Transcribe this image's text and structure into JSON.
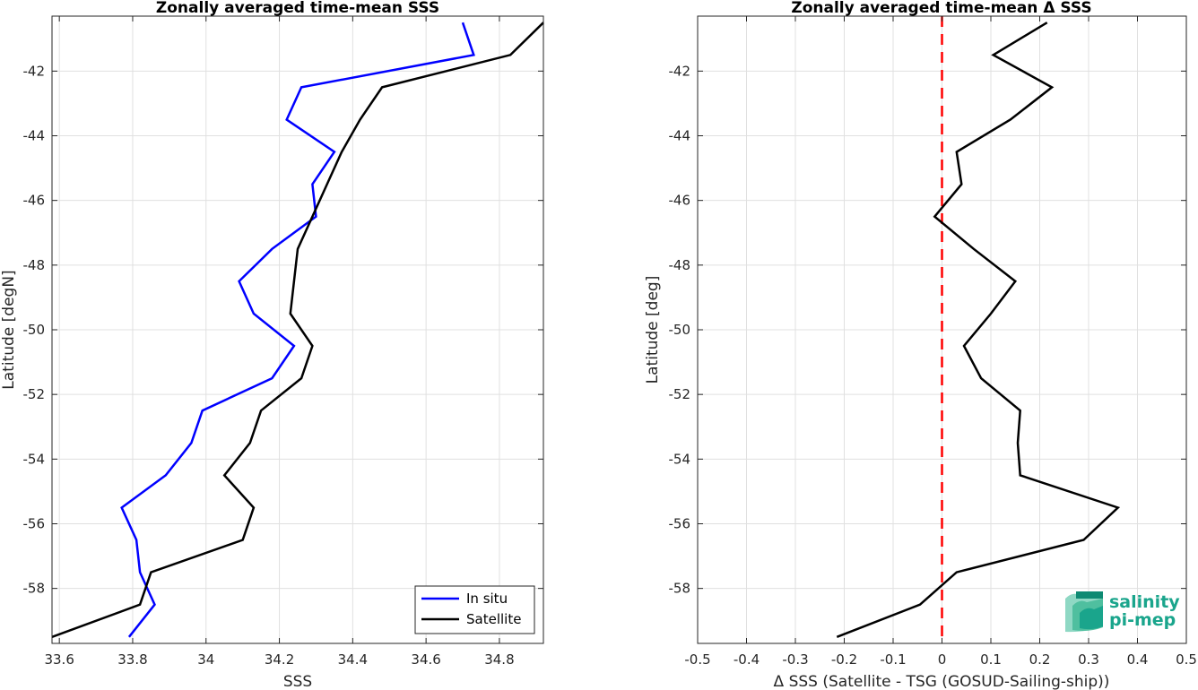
{
  "chart_data": [
    {
      "type": "line",
      "title": "Zonally averaged time-mean SSS",
      "xlabel": "SSS",
      "ylabel": "Latitude [degN]",
      "xlim": [
        33.58,
        34.92
      ],
      "ylim": [
        -59.7,
        -40.3
      ],
      "xticks": [
        33.6,
        33.8,
        34,
        34.2,
        34.4,
        34.6,
        34.8
      ],
      "xtick_labels": [
        "33.6",
        "33.8",
        "34",
        "34.2",
        "34.4",
        "34.6",
        "34.8"
      ],
      "yticks": [
        -42,
        -44,
        -46,
        -48,
        -50,
        -52,
        -54,
        -56,
        -58
      ],
      "ytick_labels": [
        "-42",
        "-44",
        "-46",
        "-48",
        "-50",
        "-52",
        "-54",
        "-56",
        "-58"
      ],
      "grid": true,
      "legend": "bottom-right",
      "series": [
        {
          "name": "In situ",
          "color": "#0000ff",
          "x": [
            34.7,
            34.73,
            34.26,
            34.22,
            34.35,
            34.29,
            34.3,
            34.18,
            34.09,
            34.13,
            34.24,
            34.18,
            33.99,
            33.96,
            33.89,
            33.77,
            33.81,
            33.82,
            33.86,
            33.79
          ],
          "y": [
            -40.5,
            -41.5,
            -42.5,
            -43.5,
            -44.5,
            -45.5,
            -46.5,
            -47.5,
            -48.5,
            -49.5,
            -50.5,
            -51.5,
            -52.5,
            -53.5,
            -54.5,
            -55.5,
            -56.5,
            -57.5,
            -58.5,
            -59.5
          ]
        },
        {
          "name": "Satellite",
          "color": "#000000",
          "x": [
            34.92,
            34.83,
            34.48,
            34.42,
            34.37,
            34.33,
            34.29,
            34.25,
            34.24,
            34.23,
            34.29,
            34.26,
            34.15,
            34.12,
            34.05,
            34.13,
            34.1,
            33.85,
            33.82,
            33.58
          ],
          "y": [
            -40.5,
            -41.5,
            -42.5,
            -43.5,
            -44.5,
            -45.5,
            -46.5,
            -47.5,
            -48.5,
            -49.5,
            -50.5,
            -51.5,
            -52.5,
            -53.5,
            -54.5,
            -55.5,
            -56.5,
            -57.5,
            -58.5,
            -59.5
          ]
        }
      ]
    },
    {
      "type": "line",
      "title": "Zonally averaged time-mean Δ SSS",
      "xlabel": "Δ SSS (Satellite - TSG (GOSUD-Sailing-ship))",
      "ylabel": "Latitude [deg]",
      "xlim": [
        -0.5,
        0.5
      ],
      "ylim": [
        -59.7,
        -40.3
      ],
      "xticks": [
        -0.5,
        -0.4,
        -0.3,
        -0.2,
        -0.1,
        0,
        0.1,
        0.2,
        0.3,
        0.4,
        0.5
      ],
      "xtick_labels": [
        "-0.5",
        "-0.4",
        "-0.3",
        "-0.2",
        "-0.1",
        "0",
        "0.1",
        "0.2",
        "0.3",
        "0.4",
        "0.5"
      ],
      "yticks": [
        -42,
        -44,
        -46,
        -48,
        -50,
        -52,
        -54,
        -56,
        -58
      ],
      "ytick_labels": [
        "-42",
        "-44",
        "-46",
        "-48",
        "-50",
        "-52",
        "-54",
        "-56",
        "-58"
      ],
      "grid": true,
      "reference_line": {
        "x": 0,
        "color": "#ff0000",
        "style": "dashed"
      },
      "series": [
        {
          "color": "#000000",
          "x": [
            0.215,
            0.105,
            0.225,
            0.14,
            0.03,
            0.04,
            -0.015,
            0.065,
            0.15,
            0.1,
            0.045,
            0.08,
            0.16,
            0.155,
            0.16,
            0.36,
            0.29,
            0.03,
            -0.045,
            -0.215
          ],
          "y": [
            -40.5,
            -41.5,
            -42.5,
            -43.5,
            -44.5,
            -45.5,
            -46.5,
            -47.5,
            -48.5,
            -49.5,
            -50.5,
            -51.5,
            -52.5,
            -53.5,
            -54.5,
            -55.5,
            -56.5,
            -57.5,
            -58.5,
            -59.5
          ]
        }
      ]
    }
  ],
  "logo": {
    "line1": "salinity",
    "line2": "pi-mep"
  }
}
